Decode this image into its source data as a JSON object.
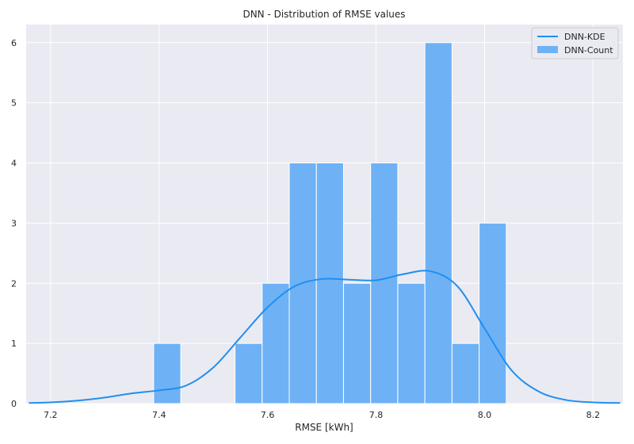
{
  "chart_data": {
    "type": "bar",
    "title": "DNN - Distribution of RMSE values",
    "xlabel": "RMSE [kWh]",
    "ylabel": "",
    "xlim": [
      7.155,
      8.255
    ],
    "ylim": [
      0,
      6.3
    ],
    "xticks": [
      7.2,
      7.4,
      7.6,
      7.8,
      8.0,
      8.2
    ],
    "xtick_labels": [
      "7.2",
      "7.4",
      "7.6",
      "7.8",
      "8.0",
      "8.2"
    ],
    "yticks": [
      0,
      1,
      2,
      3,
      4,
      5,
      6
    ],
    "ytick_labels": [
      "0",
      "1",
      "2",
      "3",
      "4",
      "5",
      "6"
    ],
    "grid": true,
    "legend_position": "top-right",
    "histogram": {
      "name": "DNN-Count",
      "bins": [
        {
          "start": 7.39,
          "end": 7.44,
          "count": 1
        },
        {
          "start": 7.44,
          "end": 7.49,
          "count": 0
        },
        {
          "start": 7.49,
          "end": 7.54,
          "count": 0
        },
        {
          "start": 7.54,
          "end": 7.59,
          "count": 1
        },
        {
          "start": 7.59,
          "end": 7.64,
          "count": 2
        },
        {
          "start": 7.64,
          "end": 7.69,
          "count": 4
        },
        {
          "start": 7.69,
          "end": 7.74,
          "count": 4
        },
        {
          "start": 7.74,
          "end": 7.79,
          "count": 2
        },
        {
          "start": 7.79,
          "end": 7.84,
          "count": 4
        },
        {
          "start": 7.84,
          "end": 7.89,
          "count": 2
        },
        {
          "start": 7.89,
          "end": 7.94,
          "count": 6
        },
        {
          "start": 7.94,
          "end": 7.99,
          "count": 1
        },
        {
          "start": 7.99,
          "end": 8.04,
          "count": 3
        }
      ]
    },
    "kde": {
      "name": "DNN-KDE",
      "x": [
        7.16,
        7.2,
        7.25,
        7.3,
        7.35,
        7.4,
        7.45,
        7.5,
        7.55,
        7.6,
        7.65,
        7.7,
        7.75,
        7.8,
        7.85,
        7.9,
        7.95,
        8.0,
        8.05,
        8.1,
        8.15,
        8.2,
        8.25
      ],
      "y": [
        0.01,
        0.02,
        0.05,
        0.1,
        0.17,
        0.22,
        0.3,
        0.6,
        1.1,
        1.6,
        1.95,
        2.07,
        2.06,
        2.05,
        2.15,
        2.2,
        1.95,
        1.25,
        0.55,
        0.2,
        0.06,
        0.02,
        0.01
      ]
    },
    "colors": {
      "background": "#eaeaf2",
      "grid": "#ffffff",
      "bar": "#6eb2f5",
      "line": "#1f8ff0"
    }
  }
}
